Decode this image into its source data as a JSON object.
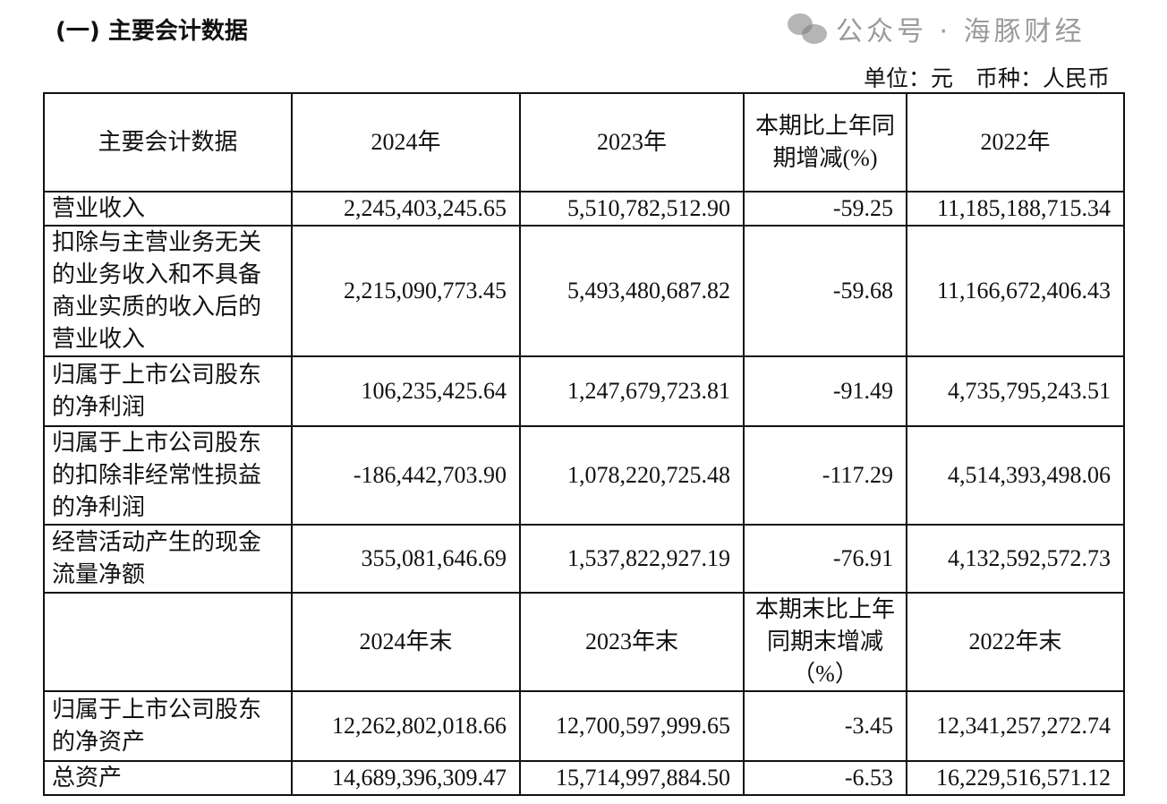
{
  "title": "(一) 主要会计数据",
  "unit": "单位：元　币种：人民币",
  "header1": [
    "主要会计数据",
    "2024年",
    "2023年",
    "本期比上年同期增减(%)",
    "2022年"
  ],
  "rows1": [
    [
      "营业收入",
      "2,245,403,245.65",
      "5,510,782,512.90",
      "-59.25",
      "11,185,188,715.34"
    ],
    [
      "扣除与主营业务无关的业务收入和不具备商业实质的收入后的营业收入",
      "2,215,090,773.45",
      "5,493,480,687.82",
      "-59.68",
      "11,166,672,406.43"
    ],
    [
      "归属于上市公司股东的净利润",
      "106,235,425.64",
      "1,247,679,723.81",
      "-91.49",
      "4,735,795,243.51"
    ],
    [
      "归属于上市公司股东的扣除非经常性损益的净利润",
      "-186,442,703.90",
      "1,078,220,725.48",
      "-117.29",
      "4,514,393,498.06"
    ],
    [
      "经营活动产生的现金流量净额",
      "355,081,646.69",
      "1,537,822,927.19",
      "-76.91",
      "4,132,592,572.73"
    ]
  ],
  "header2": [
    "",
    "2024年末",
    "2023年末",
    "本期末比上年同期末增减（%）",
    "2022年末"
  ],
  "rows2": [
    [
      "归属于上市公司股东的净资产",
      "12,262,802,018.66",
      "12,700,597,999.65",
      "-3.45",
      "12,341,257,272.74"
    ],
    [
      "总资产",
      "14,689,396,309.47",
      "15,714,997,884.50",
      "-6.53",
      "16,229,516,571.12"
    ]
  ],
  "watermark": "公众号 · 海豚财经"
}
